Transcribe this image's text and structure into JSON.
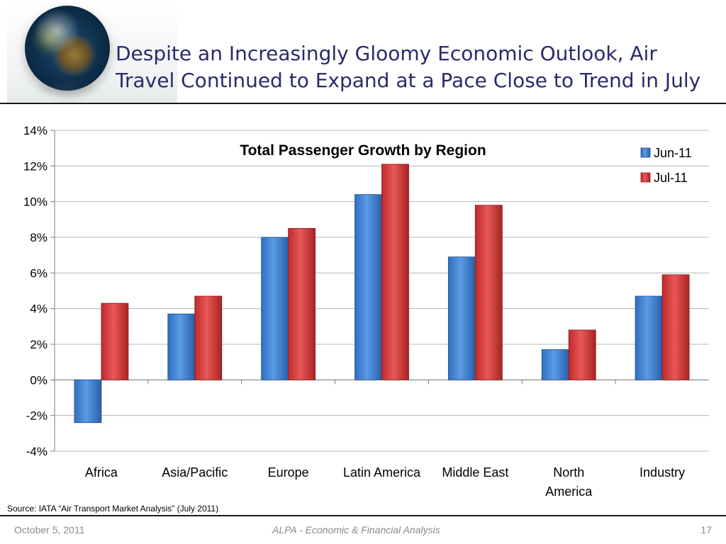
{
  "slide": {
    "title": "Despite an Increasingly Gloomy Economic Outlook, Air Travel Continued to Expand at a Pace Close to Trend in July",
    "source": "Source: IATA “Air Transport Market Analysis” (July 2011)",
    "footer_date": "October 5, 2011",
    "footer_center": "ALPA - Economic & Financial Analysis",
    "page_number": "17"
  },
  "colors": {
    "title": "#2a2a6b",
    "jun_series": "#3d7fd0",
    "jul_series": "#d23a3a",
    "gridline": "#b5b5b5"
  },
  "chart_data": {
    "type": "bar",
    "title": "Total Passenger Growth by Region",
    "xlabel": "",
    "ylabel": "",
    "categories": [
      "Africa",
      "Asia/Pacific",
      "Europe",
      "Latin America",
      "Middle East",
      "North America",
      "Industry"
    ],
    "series": [
      {
        "name": "Jun-11",
        "values": [
          -2.4,
          3.7,
          8.0,
          10.4,
          6.9,
          1.7,
          4.7
        ]
      },
      {
        "name": "Jul-11",
        "values": [
          4.3,
          4.7,
          8.5,
          12.1,
          9.8,
          2.8,
          5.9
        ]
      }
    ],
    "ylim": [
      -4,
      14
    ],
    "yticks": [
      -4,
      -2,
      0,
      2,
      4,
      6,
      8,
      10,
      12,
      14
    ],
    "ytick_format": "percent",
    "grid": true,
    "legend_position": "top-right"
  }
}
